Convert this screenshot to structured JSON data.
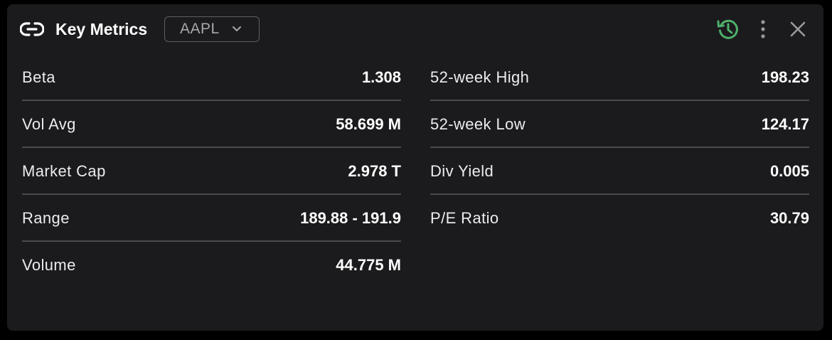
{
  "header": {
    "title": "Key Metrics",
    "ticker": "AAPL",
    "icons": {
      "link": "link-icon",
      "chevron": "chevron-down-icon",
      "history": "history-icon",
      "more": "more-vertical-icon",
      "close": "close-icon"
    }
  },
  "colors": {
    "background": "#1b1b1d",
    "accent_green": "#4fb06b",
    "divider": "#4a4a4e"
  },
  "metrics_left": [
    {
      "label": "Beta",
      "value": "1.308"
    },
    {
      "label": "Vol Avg",
      "value": "58.699 M"
    },
    {
      "label": "Market Cap",
      "value": "2.978 T"
    },
    {
      "label": "Range",
      "value": "189.88 - 191.9"
    },
    {
      "label": "Volume",
      "value": "44.775 M"
    }
  ],
  "metrics_right": [
    {
      "label": "52-week High",
      "value": "198.23"
    },
    {
      "label": "52-week Low",
      "value": "124.17"
    },
    {
      "label": "Div Yield",
      "value": "0.005"
    },
    {
      "label": "P/E Ratio",
      "value": "30.79"
    }
  ]
}
